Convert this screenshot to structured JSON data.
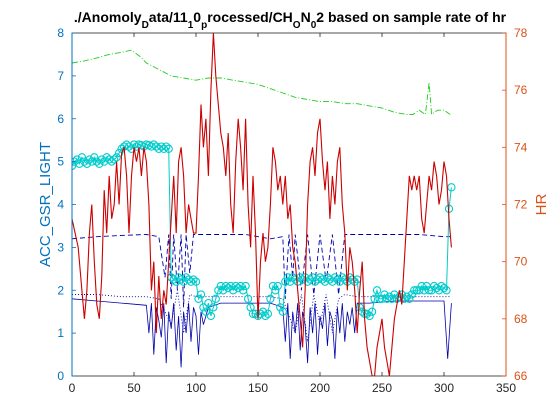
{
  "chart_data": {
    "type": "line",
    "title": {
      "parts": [
        {
          "t": "./Anomoly"
        },
        {
          "t": "D",
          "sub": true
        },
        {
          "t": "ata/11"
        },
        {
          "t": "1",
          "sub": true
        },
        {
          "t": "0"
        },
        {
          "t": "p",
          "sub": true
        },
        {
          "t": "rocessed/CH"
        },
        {
          "t": "O",
          "sub": true
        },
        {
          "t": "N"
        },
        {
          "t": "0",
          "sub": true
        },
        {
          "t": "2 based on sample rate of hr"
        }
      ]
    },
    "xlim": [
      0,
      350
    ],
    "x_ticks": [
      "0",
      "50",
      "100",
      "150",
      "200",
      "250",
      "300",
      "350"
    ],
    "ylabel_left": "ACC_GSR_LIGHT",
    "ylim_left": [
      0,
      8
    ],
    "y_ticks_left": [
      "0",
      "1",
      "2",
      "3",
      "4",
      "5",
      "6",
      "7",
      "8"
    ],
    "ylabel_right": "HR",
    "ylim_right": [
      66,
      78
    ],
    "y_ticks_right": [
      "66",
      "68",
      "70",
      "72",
      "74",
      "76",
      "78"
    ],
    "colors": {
      "left_axis": "#0072BD",
      "right_axis": "#D95319",
      "hr": "#CC0000",
      "blue_lines": "#0000AA",
      "green": "#22CC22",
      "cyan": "#00CCCC"
    },
    "series": [
      {
        "axis": "left",
        "style": "dashdot-green",
        "x": [
          0,
          10,
          20,
          30,
          40,
          48,
          55,
          60,
          70,
          80,
          90,
          100,
          110,
          120,
          130,
          140,
          150,
          160,
          170,
          180,
          190,
          200,
          210,
          220,
          230,
          240,
          250,
          260,
          270,
          275,
          280,
          285,
          288,
          290,
          292,
          295,
          300,
          305
        ],
        "y": [
          7.3,
          7.35,
          7.42,
          7.5,
          7.55,
          7.6,
          7.45,
          7.3,
          7.15,
          7.0,
          6.95,
          6.9,
          6.95,
          6.95,
          6.9,
          6.85,
          6.8,
          6.7,
          6.6,
          6.5,
          6.45,
          6.4,
          6.4,
          6.35,
          6.35,
          6.3,
          6.25,
          6.15,
          6.1,
          6.1,
          6.2,
          6.1,
          6.85,
          6.1,
          6.15,
          6.2,
          6.2,
          6.1
        ]
      },
      {
        "axis": "left",
        "style": "dashed-blue",
        "x": [
          0,
          20,
          40,
          60,
          70,
          75,
          78,
          80,
          82,
          85,
          88,
          90,
          92,
          95,
          98,
          100,
          110,
          120,
          140,
          160,
          170,
          172,
          175,
          178,
          180,
          185,
          190,
          195,
          200,
          205,
          210,
          215,
          220,
          230,
          240,
          260,
          280,
          300,
          305
        ],
        "y": [
          3.2,
          3.25,
          3.28,
          3.3,
          3.25,
          2.3,
          3.3,
          1.8,
          3.3,
          2.0,
          3.3,
          1.6,
          3.3,
          2.4,
          3.3,
          3.3,
          3.3,
          3.3,
          3.3,
          3.2,
          3.25,
          1.8,
          3.3,
          2.3,
          3.3,
          2.0,
          3.3,
          1.9,
          3.3,
          2.2,
          3.3,
          1.9,
          3.3,
          3.3,
          3.3,
          3.3,
          3.3,
          3.25,
          3.25
        ]
      },
      {
        "axis": "left",
        "style": "solid-blue",
        "x": [
          0,
          20,
          40,
          60,
          62,
          64,
          66,
          68,
          70,
          72,
          74,
          76,
          78,
          80,
          82,
          84,
          86,
          88,
          90,
          92,
          94,
          96,
          98,
          100,
          102,
          104,
          106,
          110,
          120,
          140,
          160,
          170,
          172,
          174,
          176,
          178,
          180,
          182,
          184,
          186,
          188,
          190,
          192,
          194,
          196,
          198,
          200,
          202,
          204,
          206,
          208,
          210,
          212,
          214,
          216,
          218,
          220,
          222,
          224,
          226,
          228,
          230,
          240,
          260,
          280,
          300,
          303,
          306
        ],
        "y": [
          1.8,
          1.75,
          1.7,
          1.65,
          1.0,
          1.7,
          0.5,
          1.6,
          1.3,
          0.9,
          1.7,
          0.3,
          1.5,
          1.1,
          1.7,
          0.6,
          1.4,
          0.2,
          1.5,
          1.0,
          1.7,
          0.8,
          1.6,
          1.4,
          0.5,
          1.5,
          1.2,
          1.6,
          1.7,
          1.7,
          1.7,
          1.6,
          0.8,
          1.7,
          0.4,
          1.5,
          1.0,
          1.7,
          0.6,
          1.5,
          1.2,
          0.3,
          1.6,
          1.0,
          1.7,
          0.5,
          1.4,
          1.1,
          1.7,
          0.7,
          1.5,
          1.3,
          0.4,
          1.6,
          1.0,
          1.7,
          0.8,
          1.5,
          1.2,
          1.6,
          1.0,
          1.7,
          1.7,
          1.75,
          1.75,
          1.75,
          0.4,
          1.7
        ]
      },
      {
        "axis": "left",
        "style": "dotted-blue",
        "x": [
          0,
          20,
          40,
          60,
          70,
          80,
          85,
          90,
          95,
          100,
          110,
          140,
          160,
          170,
          180,
          185,
          190,
          195,
          200,
          205,
          210,
          215,
          220,
          230,
          260,
          290,
          300,
          305
        ],
        "y": [
          1.9,
          1.9,
          1.85,
          1.85,
          1.8,
          1.2,
          2.0,
          1.0,
          1.9,
          1.85,
          1.85,
          1.85,
          1.85,
          1.8,
          1.0,
          1.9,
          0.8,
          1.9,
          1.2,
          1.9,
          1.0,
          1.8,
          1.9,
          1.85,
          1.85,
          1.85,
          1.85,
          1.85
        ]
      },
      {
        "axis": "left",
        "style": "cyan-circles",
        "x": [
          0,
          2,
          4,
          6,
          8,
          10,
          12,
          14,
          16,
          18,
          20,
          22,
          24,
          26,
          28,
          30,
          32,
          34,
          36,
          38,
          40,
          42,
          44,
          46,
          48,
          50,
          52,
          54,
          56,
          58,
          60,
          62,
          64,
          66,
          68,
          70,
          72,
          74,
          76,
          78,
          80,
          82,
          84,
          86,
          88,
          90,
          92,
          94,
          96,
          98,
          100,
          102,
          104,
          106,
          108,
          110,
          112,
          114,
          116,
          118,
          120,
          122,
          124,
          126,
          128,
          130,
          132,
          134,
          136,
          138,
          140,
          142,
          144,
          146,
          148,
          150,
          152,
          154,
          156,
          158,
          160,
          162,
          164,
          166,
          168,
          170,
          172,
          174,
          176,
          178,
          180,
          182,
          184,
          186,
          188,
          190,
          192,
          194,
          196,
          198,
          200,
          202,
          204,
          206,
          208,
          210,
          212,
          214,
          216,
          218,
          220,
          222,
          224,
          226,
          228,
          230,
          232,
          234,
          236,
          238,
          240,
          242,
          244,
          246,
          248,
          250,
          252,
          254,
          256,
          258,
          260,
          262,
          264,
          266,
          268,
          270,
          272,
          274,
          276,
          278,
          280,
          282,
          284,
          286,
          288,
          290,
          292,
          294,
          296,
          298,
          300,
          302,
          304,
          306
        ],
        "y": [
          4.9,
          5.0,
          5.05,
          4.95,
          5.1,
          5.0,
          4.95,
          5.05,
          5.0,
          5.1,
          5.0,
          4.95,
          5.05,
          5.0,
          5.1,
          5.05,
          5.0,
          5.05,
          5.1,
          5.2,
          5.3,
          5.35,
          5.4,
          5.35,
          5.3,
          5.4,
          5.35,
          5.4,
          5.38,
          5.35,
          5.4,
          5.38,
          5.35,
          5.4,
          5.35,
          5.3,
          5.35,
          5.3,
          5.35,
          5.3,
          2.3,
          2.25,
          2.2,
          2.3,
          2.25,
          2.2,
          2.3,
          2.25,
          2.2,
          2.25,
          2.2,
          1.8,
          1.9,
          1.6,
          1.5,
          1.7,
          1.4,
          1.6,
          1.8,
          2.0,
          2.1,
          2.0,
          2.1,
          2.05,
          2.1,
          2.0,
          2.1,
          2.05,
          2.1,
          2.0,
          2.1,
          1.8,
          1.6,
          1.45,
          1.45,
          1.4,
          1.45,
          1.5,
          1.4,
          1.45,
          1.8,
          2.1,
          2.0,
          2.1,
          1.6,
          1.5,
          2.2,
          2.3,
          2.2,
          2.3,
          2.25,
          2.2,
          2.3,
          2.25,
          2.3,
          2.2,
          2.25,
          2.3,
          2.2,
          2.25,
          2.3,
          2.25,
          2.2,
          2.3,
          2.25,
          2.2,
          2.3,
          2.25,
          2.2,
          2.3,
          2.25,
          2.2,
          2.3,
          2.25,
          2.2,
          2.25,
          1.6,
          1.5,
          1.45,
          1.45,
          1.4,
          1.5,
          1.8,
          2.0,
          1.8,
          1.8,
          1.9,
          1.8,
          1.85,
          1.8,
          1.9,
          1.8,
          1.85,
          1.9,
          1.8,
          1.85,
          1.8,
          1.9,
          2.0,
          2.0,
          2.0,
          2.1,
          2.0,
          2.1,
          2.0,
          2.0,
          2.1,
          2.05,
          2.0,
          2.1,
          2.05,
          2.0,
          3.9,
          4.4
        ]
      },
      {
        "axis": "right",
        "style": "solid-red",
        "x": [
          0,
          5,
          8,
          10,
          12,
          14,
          16,
          18,
          20,
          22,
          24,
          26,
          28,
          30,
          32,
          34,
          36,
          38,
          40,
          42,
          44,
          46,
          48,
          50,
          52,
          54,
          56,
          58,
          60,
          62,
          64,
          66,
          68,
          70,
          72,
          74,
          76,
          78,
          80,
          82,
          84,
          86,
          88,
          90,
          92,
          94,
          96,
          98,
          100,
          102,
          104,
          106,
          108,
          110,
          112,
          114,
          116,
          118,
          120,
          122,
          124,
          126,
          128,
          130,
          132,
          134,
          136,
          138,
          140,
          142,
          144,
          146,
          148,
          150,
          152,
          154,
          156,
          158,
          160,
          162,
          164,
          166,
          168,
          170,
          172,
          174,
          176,
          178,
          180,
          182,
          184,
          186,
          188,
          190,
          192,
          194,
          196,
          198,
          200,
          202,
          204,
          206,
          208,
          210,
          212,
          214,
          216,
          218,
          220,
          222,
          224,
          226,
          228,
          230,
          232,
          234,
          236,
          238,
          240,
          242,
          244,
          246,
          248,
          250,
          252,
          254,
          256,
          258,
          260,
          262,
          264,
          266,
          268,
          270,
          272,
          274,
          276,
          278,
          280,
          282,
          284,
          286,
          288,
          290,
          292,
          294,
          296,
          298,
          300,
          302,
          304,
          306
        ],
        "y": [
          71.5,
          70.5,
          69.0,
          68.0,
          69.0,
          71.0,
          72.0,
          70.0,
          68.5,
          68.0,
          69.5,
          72.5,
          71.0,
          73.0,
          71.5,
          72.0,
          73.5,
          72.0,
          73.8,
          74.0,
          73.0,
          71.0,
          73.0,
          74.0,
          73.5,
          74.0,
          73.0,
          74.0,
          73.5,
          72.0,
          69.0,
          70.0,
          67.5,
          69.5,
          68.0,
          69.0,
          68.5,
          70.0,
          71.5,
          73.0,
          71.0,
          73.5,
          74.0,
          73.0,
          71.0,
          72.0,
          71.5,
          71.0,
          71.0,
          73.0,
          75.5,
          74.0,
          75.0,
          73.0,
          76.0,
          78.0,
          76.5,
          75.5,
          74.5,
          74.0,
          73.0,
          74.5,
          72.0,
          71.0,
          73.5,
          75.0,
          74.0,
          72.5,
          75.0,
          72.0,
          70.5,
          73.0,
          71.0,
          68.0,
          70.0,
          71.0,
          70.0,
          70.5,
          72.0,
          74.0,
          73.5,
          72.5,
          73.0,
          72.0,
          73.0,
          71.5,
          72.0,
          70.5,
          70.0,
          69.0,
          68.0,
          67.0,
          69.0,
          72.0,
          73.5,
          74.0,
          73.0,
          74.5,
          75.0,
          73.5,
          72.5,
          73.5,
          71.5,
          73.0,
          72.0,
          73.5,
          74.0,
          72.0,
          71.0,
          69.0,
          70.5,
          70.0,
          69.0,
          67.5,
          69.0,
          70.0,
          68.0,
          67.0,
          66.5,
          66.0,
          66.0,
          67.0,
          67.5,
          68.0,
          67.0,
          66.5,
          66.0,
          67.0,
          68.0,
          68.5,
          69.0,
          68.5,
          70.0,
          71.5,
          73.0,
          72.5,
          73.0,
          72.5,
          73.0,
          71.5,
          71.0,
          72.0,
          73.0,
          72.5,
          73.5,
          73.0,
          72.0,
          72.5,
          73.5,
          73.0,
          71.5,
          70.5
        ]
      }
    ]
  }
}
